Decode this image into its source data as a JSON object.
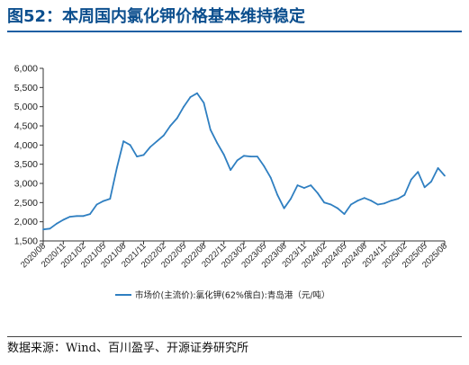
{
  "title": "图52：本周国内氯化钾价格基本维持稳定",
  "source": "数据来源：Wind、百川盈孚、开源证券研究所",
  "chart_data": {
    "type": "line",
    "title": "",
    "xlabel": "",
    "ylabel": "",
    "ylim": [
      1500,
      6000
    ],
    "yticks": [
      "1,500",
      "2,000",
      "2,500",
      "3,000",
      "3,500",
      "4,000",
      "4,500",
      "5,000",
      "5,500",
      "6,000"
    ],
    "yticks_values": [
      1500,
      2000,
      2500,
      3000,
      3500,
      4000,
      4500,
      5000,
      5500,
      6000
    ],
    "xticks": [
      "2020/08",
      "2020/11",
      "2021/02",
      "2021/05",
      "2021/08",
      "2021/11",
      "2022/02",
      "2022/05",
      "2022/08",
      "2022/11",
      "2023/02",
      "2023/05",
      "2023/08",
      "2023/11",
      "2024/02",
      "2024/05",
      "2024/08",
      "2024/11",
      "2025/02",
      "2025/05",
      "2025/08"
    ],
    "grid": false,
    "legend_position": "bottom",
    "series": [
      {
        "name": "市场价(主流价):氯化钾(62%俄白):青岛港（元/吨）",
        "color": "#2f7fc1",
        "x": [
          "2020/08",
          "2020/09",
          "2020/10",
          "2020/11",
          "2020/12",
          "2021/01",
          "2021/02",
          "2021/03",
          "2021/04",
          "2021/05",
          "2021/06",
          "2021/07",
          "2021/08",
          "2021/09",
          "2021/10",
          "2021/11",
          "2021/12",
          "2022/01",
          "2022/02",
          "2022/03",
          "2022/04",
          "2022/05",
          "2022/06",
          "2022/07",
          "2022/08",
          "2022/09",
          "2022/10",
          "2022/11",
          "2022/12",
          "2023/01",
          "2023/02",
          "2023/03",
          "2023/04",
          "2023/05",
          "2023/06",
          "2023/07",
          "2023/08",
          "2023/09",
          "2023/10",
          "2023/11",
          "2023/12",
          "2024/01",
          "2024/02",
          "2024/03",
          "2024/04",
          "2024/05",
          "2024/06",
          "2024/07",
          "2024/08",
          "2024/09",
          "2024/10",
          "2024/11",
          "2024/12",
          "2025/01",
          "2025/02",
          "2025/03",
          "2025/04",
          "2025/05",
          "2025/06",
          "2025/07",
          "2025/08"
        ],
        "values": [
          1800,
          1820,
          1950,
          2050,
          2130,
          2150,
          2150,
          2200,
          2450,
          2540,
          2600,
          3400,
          4100,
          4000,
          3700,
          3740,
          3950,
          4100,
          4250,
          4500,
          4700,
          5000,
          5250,
          5350,
          5100,
          4400,
          4050,
          3750,
          3350,
          3600,
          3720,
          3700,
          3700,
          3450,
          3150,
          2700,
          2350,
          2600,
          2950,
          2880,
          2950,
          2750,
          2500,
          2450,
          2350,
          2200,
          2450,
          2550,
          2620,
          2550,
          2450,
          2480,
          2550,
          2600,
          2700,
          3100,
          3300,
          2900,
          3050,
          3400,
          3200
        ]
      }
    ]
  }
}
